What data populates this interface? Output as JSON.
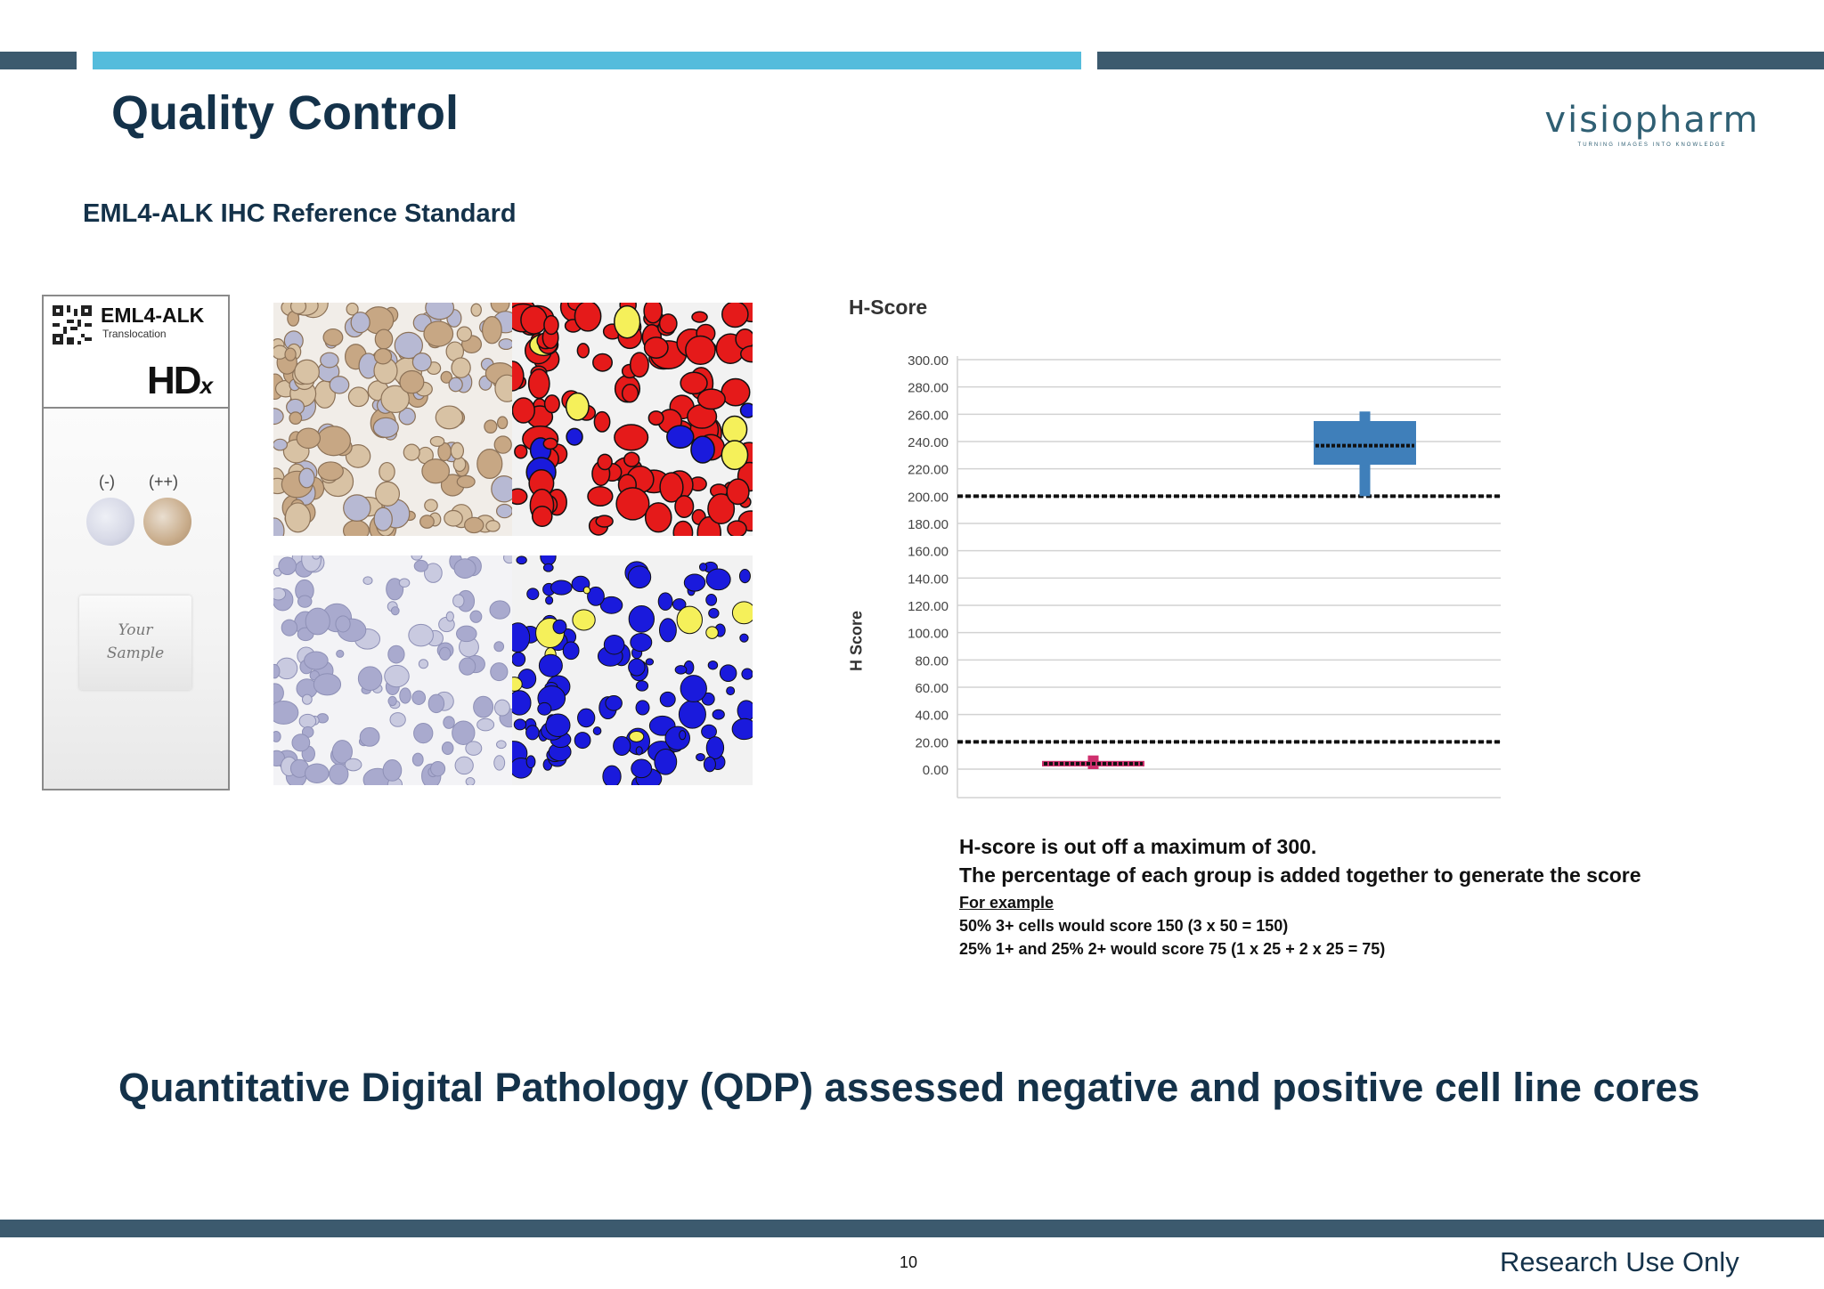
{
  "header": {
    "title": "Quality Control",
    "logo_text": "visiopharm",
    "logo_tagline": "TURNING IMAGES INTO KNOWLEDGE",
    "colors": {
      "dark_bar": "#3c5a6e",
      "accent_bar": "#55bcdc",
      "title": "#14324a"
    }
  },
  "subtitle": "EML4-ALK IHC Reference Standard",
  "reference_card": {
    "title": "EML4-ALK",
    "subtitle": "Translocation",
    "brand": "HD",
    "brand_suffix": "x",
    "qr_icon": "qr-code-icon",
    "negative_label": "(-)",
    "positive_label": "(++)",
    "sample_line1": "Your",
    "sample_line2": "Sample"
  },
  "micrographs": {
    "panels": [
      "positive-brightfield",
      "positive-segmentation",
      "negative-brightfield",
      "negative-segmentation"
    ],
    "colors": {
      "positive_mask": "#e51a1a",
      "negative_mask": "#1a1adc",
      "weak_mask": "#f5f05a"
    }
  },
  "chart_data": {
    "type": "box",
    "title": "H-Score",
    "ylabel": "H Score",
    "xlabel": "",
    "ylim": [
      0,
      300
    ],
    "yticks": [
      "0.00",
      "20.00",
      "40.00",
      "60.00",
      "80.00",
      "100.00",
      "120.00",
      "140.00",
      "160.00",
      "180.00",
      "200.00",
      "220.00",
      "240.00",
      "260.00",
      "280.00",
      "300.00"
    ],
    "grid": true,
    "thresholds": [
      20,
      200
    ],
    "boxes": [
      {
        "whisker_low": 0,
        "q1": 2,
        "median": 4,
        "q3": 6,
        "whisker_high": 10,
        "color": "#cf2f6d"
      },
      {
        "whisker_low": 200,
        "q1": 223,
        "median": 237,
        "q3": 255,
        "whisker_high": 262,
        "color": "#3f7fba"
      }
    ]
  },
  "notes": {
    "line1": "H-score is out off a maximum of 300.",
    "line2": "The percentage of each group is added together to generate the score",
    "line3": "For example ",
    "line4": "50% 3+ cells would score 150 (3 x 50 = 150)",
    "line5": "25% 1+ and 25% 2+ would score 75 (1 x 25 + 2 x 25 = 75)"
  },
  "headline": "Quantitative Digital Pathology (QDP) assessed negative and positive cell line cores",
  "footer": {
    "page_number": "10",
    "note": "Research Use Only"
  }
}
